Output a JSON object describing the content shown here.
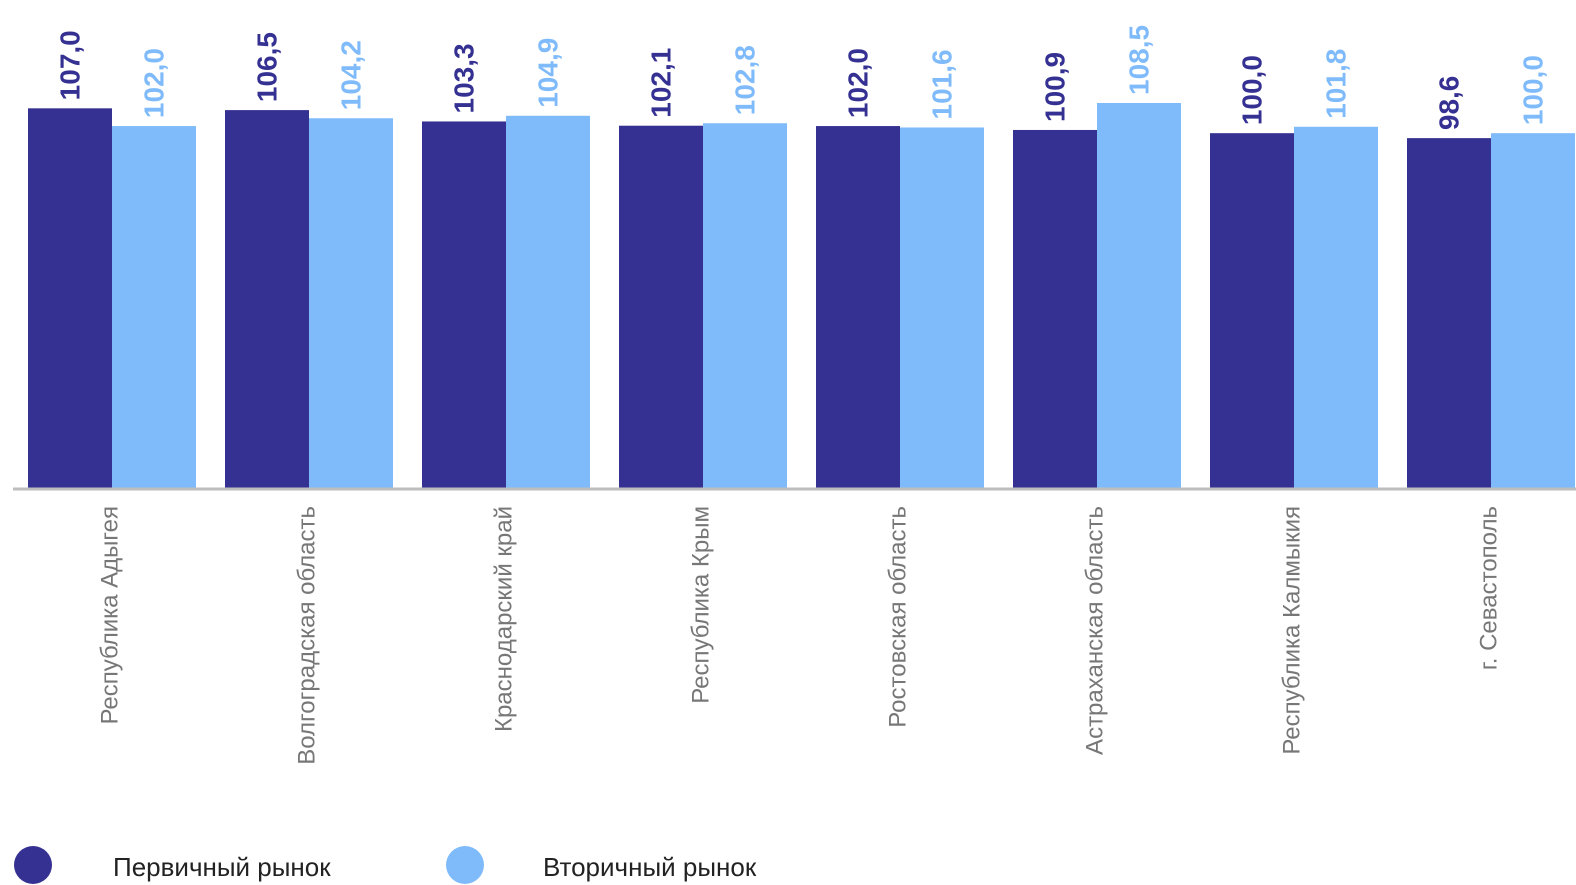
{
  "chart_data": {
    "type": "bar",
    "categories": [
      "Республика Адыгея",
      "Волгоградская область",
      "Краснодарский край",
      "Республика Крым",
      "Ростовская область",
      "Астраханская область",
      "Республика Калмыкия",
      "г. Севастополь"
    ],
    "series": [
      {
        "name": "Первичный рынок",
        "values": [
          107.0,
          106.5,
          103.3,
          102.1,
          102.0,
          100.9,
          100.0,
          98.6
        ],
        "labels": [
          "107,0",
          "106,5",
          "103,3",
          "102,1",
          "102,0",
          "100,9",
          "100,0",
          "98,6"
        ],
        "color": "#353192"
      },
      {
        "name": "Вторичный рынок",
        "values": [
          102.0,
          104.2,
          104.9,
          102.8,
          101.6,
          108.5,
          101.8,
          100.0
        ],
        "labels": [
          "102,0",
          "104,2",
          "104,9",
          "102,8",
          "101,6",
          "108,5",
          "101,8",
          "100,0"
        ],
        "color": "#7FBBFA"
      }
    ],
    "ylim": [
      0,
      108.5
    ],
    "grid": false,
    "legend_position": "bottom-left",
    "axis_color": "#BDBDBD",
    "category_label_color": "#777777"
  }
}
